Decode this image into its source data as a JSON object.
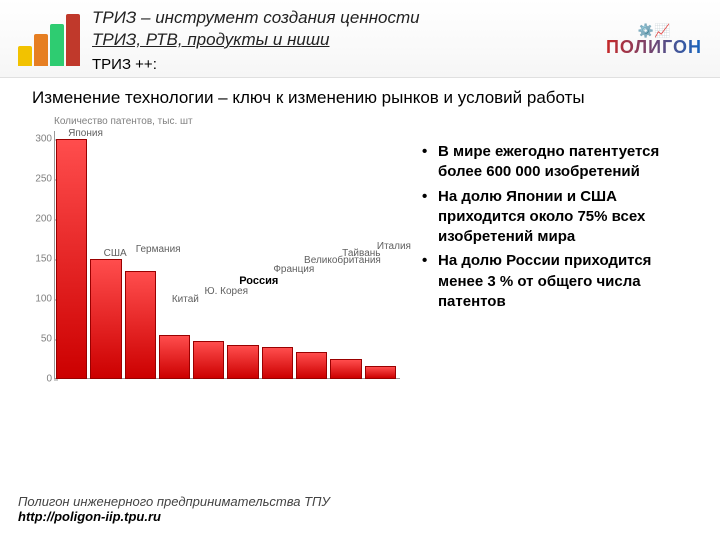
{
  "header": {
    "title_line1": "ТРИЗ – инструмент создания ценности",
    "title_line2": "ТРИЗ, РТВ, продукты и ниши",
    "subtitle": "ТРИЗ ++:",
    "logo_bars": [
      {
        "h": 20,
        "c": "#f2c200"
      },
      {
        "h": 32,
        "c": "#e67e22"
      },
      {
        "h": 42,
        "c": "#2ecc71"
      },
      {
        "h": 52,
        "c": "#c0392b"
      }
    ],
    "brand": "ПОЛИГОН"
  },
  "subheading": "Изменение технологии – ключ к изменению рынков и условий работы",
  "chart": {
    "type": "bar",
    "ylabel": "Количество патентов, тыс. шт",
    "ylim": [
      0,
      310
    ],
    "yticks": [
      0,
      50,
      100,
      150,
      200,
      250,
      300
    ],
    "bar_fill_top": "#ff4d4d",
    "bar_fill_bottom": "#cc0000",
    "bar_border": "#990000",
    "axis_color": "#999999",
    "tick_color": "#808080",
    "label_fontsize": 10,
    "highlight_index": 5,
    "series": [
      {
        "label": "Япония",
        "value": 300
      },
      {
        "label": "США",
        "value": 150
      },
      {
        "label": "Германия",
        "value": 135
      },
      {
        "label": "Китай",
        "value": 55
      },
      {
        "label": "Ю. Корея",
        "value": 48
      },
      {
        "label": "Россия",
        "value": 42
      },
      {
        "label": "Франция",
        "value": 40
      },
      {
        "label": "Великобритания",
        "value": 34
      },
      {
        "label": "Тайвань",
        "value": 25
      },
      {
        "label": "Италия",
        "value": 16
      }
    ]
  },
  "bullets": [
    "В мире ежегодно патентуется более 600 000 изобретений",
    "На долю Японии и США приходится около 75% всех изобретений мира",
    "На долю России приходится менее 3 % от общего числа патентов"
  ],
  "footer": {
    "line1": "Полигон инженерного предпринимательства ТПУ",
    "line2": "http://poligon-iip.tpu.ru"
  }
}
